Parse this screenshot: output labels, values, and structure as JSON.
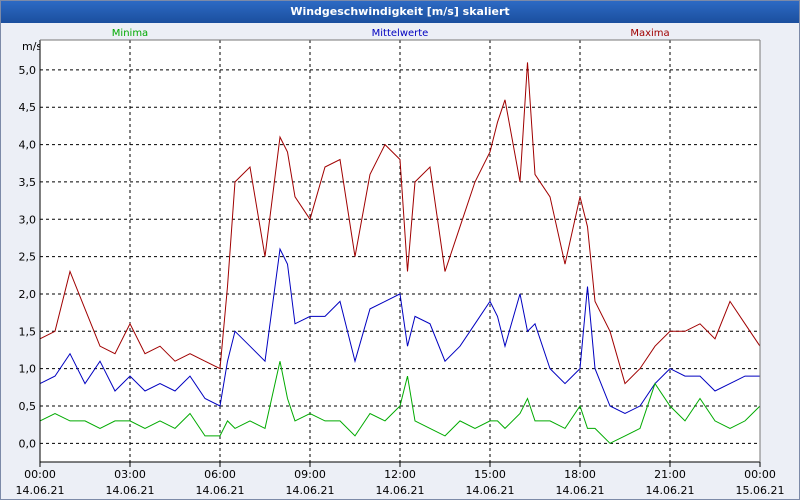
{
  "window": {
    "title": "Windgeschwindigkeit [m/s] skaliert"
  },
  "chart_data": {
    "type": "line",
    "title": "Windgeschwindigkeit [m/s] skaliert",
    "ylabel": "m/s",
    "ylim": [
      -0.25,
      5.4
    ],
    "yticks": [
      "0,0",
      "0,5",
      "1,0",
      "1,5",
      "2,0",
      "2,5",
      "3,0",
      "3,5",
      "4,0",
      "4,5",
      "5,0"
    ],
    "ytick_values": [
      0,
      0.5,
      1,
      1.5,
      2,
      2.5,
      3,
      3.5,
      4,
      4.5,
      5
    ],
    "xticks": [
      {
        "time": "00:00",
        "date": "14.06.21"
      },
      {
        "time": "03:00",
        "date": "14.06.21"
      },
      {
        "time": "06:00",
        "date": "14.06.21"
      },
      {
        "time": "09:00",
        "date": "14.06.21"
      },
      {
        "time": "12:00",
        "date": "14.06.21"
      },
      {
        "time": "15:00",
        "date": "14.06.21"
      },
      {
        "time": "18:00",
        "date": "14.06.21"
      },
      {
        "time": "21:00",
        "date": "14.06.21"
      },
      {
        "time": "00:00",
        "date": "15.06.21"
      }
    ],
    "x_hours_range": [
      0,
      24
    ],
    "legend": {
      "min": "Minima",
      "mean": "Mittelwerte",
      "max": "Maxima"
    },
    "colors": {
      "min": "#00AA00",
      "mean": "#0000C0",
      "max": "#A00000",
      "axis": "#000000",
      "grid": "#000000"
    },
    "series": [
      {
        "name": "Maxima",
        "key": "max",
        "x": [
          0,
          0.5,
          1,
          1.5,
          2,
          2.5,
          3,
          3.5,
          4,
          4.5,
          5,
          5.5,
          6,
          6.25,
          6.5,
          7,
          7.5,
          8,
          8.25,
          8.5,
          9,
          9.5,
          10,
          10.5,
          11,
          11.5,
          12,
          12.25,
          12.5,
          13,
          13.5,
          14,
          14.5,
          15,
          15.25,
          15.5,
          16,
          16.25,
          16.5,
          17,
          17.5,
          18,
          18.25,
          18.5,
          19,
          19.5,
          20,
          20.5,
          21,
          21.5,
          22,
          22.5,
          23,
          23.5,
          24
        ],
        "values": [
          1.4,
          1.5,
          2.3,
          1.8,
          1.3,
          1.2,
          1.6,
          1.2,
          1.3,
          1.1,
          1.2,
          1.1,
          1.0,
          2.1,
          3.5,
          3.7,
          2.5,
          4.1,
          3.9,
          3.3,
          3.0,
          3.7,
          3.8,
          2.5,
          3.6,
          4.0,
          3.8,
          2.3,
          3.5,
          3.7,
          2.3,
          2.9,
          3.5,
          3.9,
          4.3,
          4.6,
          3.5,
          5.1,
          3.6,
          3.3,
          2.4,
          3.3,
          2.9,
          1.9,
          1.5,
          0.8,
          1.0,
          1.3,
          1.5,
          1.5,
          1.6,
          1.4,
          1.9,
          1.6,
          1.3
        ]
      },
      {
        "name": "Mittelwerte",
        "key": "mean",
        "x": [
          0,
          0.5,
          1,
          1.5,
          2,
          2.5,
          3,
          3.5,
          4,
          4.5,
          5,
          5.5,
          6,
          6.25,
          6.5,
          7,
          7.5,
          8,
          8.25,
          8.5,
          9,
          9.5,
          10,
          10.5,
          11,
          11.5,
          12,
          12.25,
          12.5,
          13,
          13.5,
          14,
          14.5,
          15,
          15.25,
          15.5,
          16,
          16.25,
          16.5,
          17,
          17.5,
          18,
          18.25,
          18.5,
          19,
          19.5,
          20,
          20.5,
          21,
          21.5,
          22,
          22.5,
          23,
          23.5,
          24
        ],
        "values": [
          0.8,
          0.9,
          1.2,
          0.8,
          1.1,
          0.7,
          0.9,
          0.7,
          0.8,
          0.7,
          0.9,
          0.6,
          0.5,
          1.1,
          1.5,
          1.3,
          1.1,
          2.6,
          2.4,
          1.6,
          1.7,
          1.7,
          1.9,
          1.1,
          1.8,
          1.9,
          2.0,
          1.3,
          1.7,
          1.6,
          1.1,
          1.3,
          1.6,
          1.9,
          1.7,
          1.3,
          2.0,
          1.5,
          1.6,
          1.0,
          0.8,
          1.0,
          2.1,
          1.0,
          0.5,
          0.4,
          0.5,
          0.8,
          1.0,
          0.9,
          0.9,
          0.7,
          0.8,
          0.9,
          0.9
        ]
      },
      {
        "name": "Minima",
        "key": "min",
        "x": [
          0,
          0.5,
          1,
          1.5,
          2,
          2.5,
          3,
          3.5,
          4,
          4.5,
          5,
          5.5,
          6,
          6.25,
          6.5,
          7,
          7.5,
          8,
          8.25,
          8.5,
          9,
          9.5,
          10,
          10.5,
          11,
          11.5,
          12,
          12.25,
          12.5,
          13,
          13.5,
          14,
          14.5,
          15,
          15.25,
          15.5,
          16,
          16.25,
          16.5,
          17,
          17.5,
          18,
          18.25,
          18.5,
          19,
          19.5,
          20,
          20.5,
          21,
          21.5,
          22,
          22.5,
          23,
          23.5,
          24
        ],
        "values": [
          0.3,
          0.4,
          0.3,
          0.3,
          0.2,
          0.3,
          0.3,
          0.2,
          0.3,
          0.2,
          0.4,
          0.1,
          0.1,
          0.3,
          0.2,
          0.3,
          0.2,
          1.1,
          0.6,
          0.3,
          0.4,
          0.3,
          0.3,
          0.1,
          0.4,
          0.3,
          0.5,
          0.9,
          0.3,
          0.2,
          0.1,
          0.3,
          0.2,
          0.3,
          0.3,
          0.2,
          0.4,
          0.6,
          0.3,
          0.3,
          0.2,
          0.5,
          0.2,
          0.2,
          0.0,
          0.1,
          0.2,
          0.8,
          0.5,
          0.3,
          0.6,
          0.3,
          0.2,
          0.3,
          0.5
        ]
      }
    ]
  }
}
